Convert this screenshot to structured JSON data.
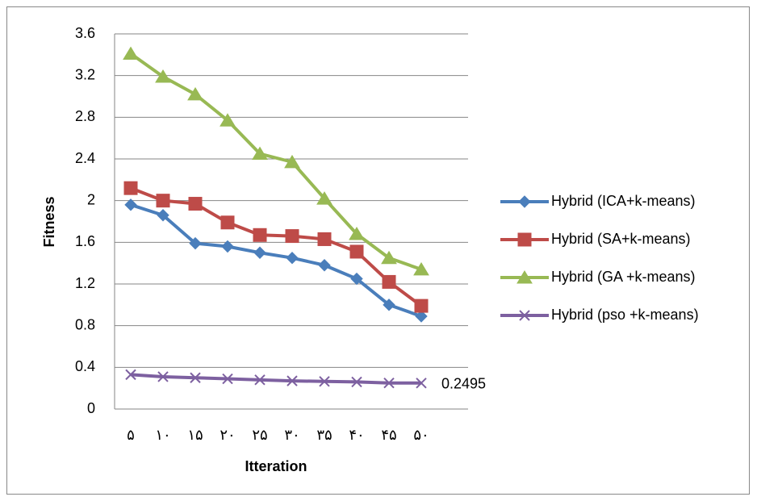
{
  "chart_data": {
    "type": "line",
    "x_label": "Itteration",
    "y_label": "Fitness",
    "categories": [
      "۵",
      "۱۰",
      "۱۵",
      "۲۰",
      "۲۵",
      "۳۰",
      "۳۵",
      "۴۰",
      "۴۵",
      "۵۰"
    ],
    "series": [
      {
        "name": "Hybrid (ICA+k-means)",
        "color": "#4a7ebb",
        "marker": "diamond",
        "values": [
          1.96,
          1.86,
          1.59,
          1.56,
          1.5,
          1.45,
          1.38,
          1.25,
          1.0,
          0.89
        ]
      },
      {
        "name": "Hybrid (SA+k-means)",
        "color": "#be4b48",
        "marker": "square",
        "values": [
          2.12,
          2.0,
          1.97,
          1.79,
          1.67,
          1.66,
          1.63,
          1.51,
          1.22,
          0.99
        ]
      },
      {
        "name": "Hybrid (GA +k-means)",
        "color": "#98b954",
        "marker": "triangle",
        "values": [
          3.41,
          3.19,
          3.02,
          2.77,
          2.45,
          2.37,
          2.02,
          1.68,
          1.45,
          1.34
        ]
      },
      {
        "name": "Hybrid (pso +k-means)",
        "color": "#7d60a0",
        "marker": "x",
        "values": [
          0.33,
          0.31,
          0.3,
          0.29,
          0.28,
          0.27,
          0.265,
          0.26,
          0.25,
          0.2495
        ],
        "value_labels": [
          null,
          null,
          null,
          null,
          null,
          null,
          null,
          null,
          null,
          "0.2495"
        ]
      }
    ],
    "ylim": [
      0,
      3.6
    ],
    "yticks": [
      0,
      0.4,
      0.8,
      1.2,
      1.6,
      2,
      2.4,
      2.8,
      3.2,
      3.6
    ],
    "grid": true,
    "legend": "right"
  }
}
